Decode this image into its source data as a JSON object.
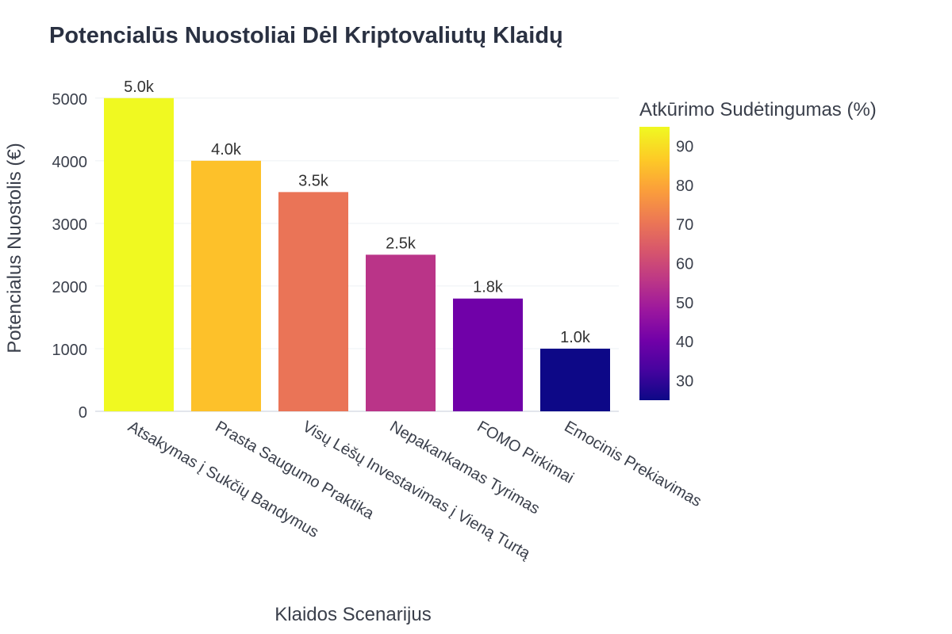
{
  "chart_data": {
    "type": "bar",
    "title": "Potencialūs Nuostoliai Dėl Kriptovaliutų Klaidų",
    "xlabel": "Klaidos Scenarijus",
    "ylabel": "Potencialus Nuostolis (€)",
    "categories": [
      "Atsakymas į Sukčių Bandymus",
      "Prasta Saugumo Praktika",
      "Visų Lėšų Investavimas į Vieną Turtą",
      "Nepakankamas Tyrimas",
      "FOMO Pirkimai",
      "Emocinis Prekiavimas"
    ],
    "values": [
      5000,
      4000,
      3500,
      2500,
      1800,
      1000
    ],
    "value_labels": [
      "5.0k",
      "4.0k",
      "3.5k",
      "2.5k",
      "1.8k",
      "1.0k"
    ],
    "color_values": [
      95,
      85,
      70,
      55,
      40,
      25
    ],
    "ylim": [
      0,
      5200
    ],
    "y_ticks": [
      0,
      1000,
      2000,
      3000,
      4000,
      5000
    ],
    "grid": true,
    "colorbar": {
      "title": "Atkūrimo Sudėtingumas (%)",
      "range": [
        25,
        95
      ],
      "ticks": [
        30,
        40,
        50,
        60,
        70,
        80,
        90
      ],
      "colorscale": "plasma",
      "placement": "right"
    }
  }
}
